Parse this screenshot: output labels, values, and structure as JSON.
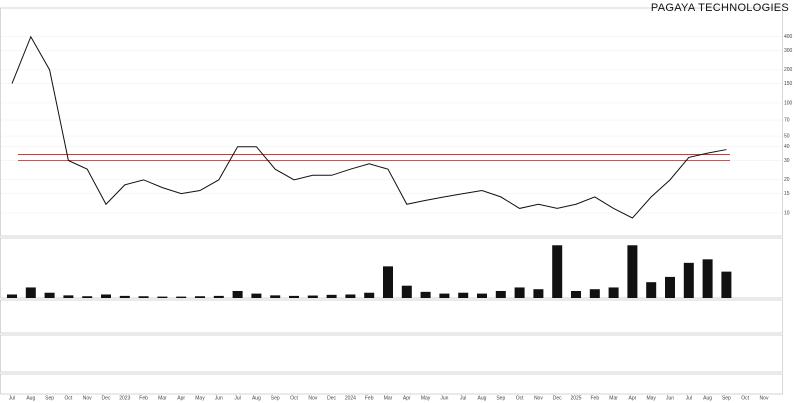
{
  "chart_data": {
    "type": "line",
    "title": "PAGAYA TECHNOLOGIES",
    "log_scale": true,
    "categories": [
      "Jul",
      "Aug",
      "Sep",
      "Oct",
      "Nov",
      "Dec",
      "2023",
      "Feb",
      "Mar",
      "Apr",
      "May",
      "Jun",
      "Jul",
      "Aug",
      "Sep",
      "Oct",
      "Nov",
      "Dec",
      "2024",
      "Feb",
      "Mar",
      "Apr",
      "May",
      "Jun",
      "Jul",
      "Aug",
      "Sep",
      "Oct",
      "Nov",
      "Dec",
      "2025",
      "Feb",
      "Mar",
      "Apr",
      "May",
      "Jun",
      "Jul",
      "Aug",
      "Sep",
      "Oct",
      "Nov"
    ],
    "series": [
      {
        "name": "Price",
        "color": "#111111",
        "values": [
          150,
          400,
          200,
          30,
          25,
          12,
          18,
          20,
          17,
          15,
          16,
          20,
          40,
          40,
          25,
          20,
          22,
          22,
          25,
          28,
          25,
          12,
          13,
          14,
          15,
          16,
          14,
          11,
          12,
          11,
          12,
          14,
          11,
          9,
          14,
          20,
          32,
          35,
          37.7,
          null,
          null
        ]
      },
      {
        "name": "Volume",
        "color": "#111111",
        "axis": "y2",
        "values": [
          20,
          60,
          30,
          15,
          10,
          20,
          12,
          10,
          8,
          8,
          10,
          12,
          40,
          25,
          15,
          12,
          14,
          18,
          20,
          30,
          180,
          70,
          35,
          25,
          30,
          25,
          40,
          60,
          50,
          300,
          40,
          50,
          60,
          300,
          90,
          120,
          200,
          220,
          150,
          null,
          null
        ]
      }
    ],
    "levels": [
      34,
      30
    ],
    "level_color": "#e03030",
    "ylim": [
      7,
      700
    ],
    "yticks": [
      400,
      300,
      200,
      150,
      100,
      70,
      50,
      40,
      30,
      20,
      15,
      10
    ],
    "y2lim": [
      0,
      330
    ],
    "grid": true
  }
}
